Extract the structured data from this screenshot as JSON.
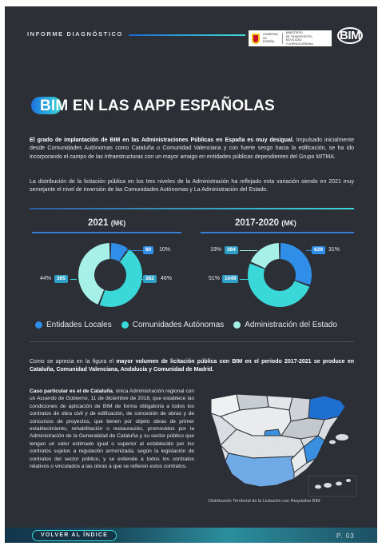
{
  "header": {
    "section_label": "INFORME DIAGNÓSTICO",
    "gov_logo_lines": [
      "GOBIERNO",
      "DE ESPAÑA",
      "MINISTERIO",
      "DE TRANSPORTES, MOVILIDAD",
      "Y AGENDA URBANA"
    ],
    "brand": "BIM"
  },
  "title": "BIM EN LAS AAPP ESPAÑOLAS",
  "paragraphs": {
    "p1_bold": "El grado de implantación de BIM en las Administraciones Públicas en España es muy desigual.",
    "p1_rest": " Impulsado inicialmente desde Comunidades Autónomas como Cataluña o Comunidad Valenciana y con fuerte sesgo hacia la edificación, se ha ido incorporando el campo de las infraestructuras con un mayor arraigo en entidades públicas dependientes del Grupo MITMA.",
    "p2": "La distribución de la licitación pública en los tres niveles de la Administración ha reflejado esta variación siendo en 2021 muy semejante el nivel de inversión de las Comunidades Autónomas y La Administración del Estado.",
    "p3_pre": "Como se aprecia en la figura el ",
    "p3_bold": "mayor volumen de licitación pública con BIM en el periodo 2017-2021 se produce en Cataluña, Comunidad Valenciana, Andalucía y Comunidad de Madrid.",
    "p4_bold": "Caso particular es el de Cataluña",
    "p4_rest": ", única Administración regional con un Acuerdo de Gobierno, 11 de diciembre de 2018, que establece las condiciones de aplicación de BIM de forma obligatoria a todos los contratos de obra civil y de edificación, de concesión de obras y de concursos de proyectos, que tienen por objeto obras de primer establecimiento, rehabilitación o restauración, promovidos por la Administración de la Generalidad de Cataluña y su sector público que tengan un valor estimado igual o superior al establecido por los contratos sujetos a regulación armonizada, según la legislación de contratos del sector público, y se extiende a todos los contratos relativos o vinculados a las obras a que se refieren estos contratos."
  },
  "chart_data": [
    {
      "type": "pie",
      "title": "2021",
      "unit": "(M€)",
      "categories": [
        "Entidades Locales",
        "Comunidades Autónomas",
        "Administración del Estado"
      ],
      "values": [
        80,
        382,
        365
      ],
      "percents": [
        "10%",
        "46%",
        "44%"
      ]
    },
    {
      "type": "pie",
      "title": "2017-2020",
      "unit": "(M€)",
      "categories": [
        "Entidades Locales",
        "Comunidades Autónomas",
        "Administración del Estado"
      ],
      "values": [
        629,
        1049,
        384
      ],
      "percents": [
        "31%",
        "51%",
        "19%"
      ]
    }
  ],
  "legend": [
    {
      "label": "Entidades Locales",
      "color": "#2f8ee8"
    },
    {
      "label": "Comunidades Autónomas",
      "color": "#3ad8d8"
    },
    {
      "label": "Administración del Estado",
      "color": "#a6f0e8"
    }
  ],
  "map": {
    "caption": "Distribución Territorial de la Licitación con Requisitos BIM"
  },
  "footer": {
    "back_label": "VOLVER AL ÍNDICE",
    "page": "P. 03"
  }
}
